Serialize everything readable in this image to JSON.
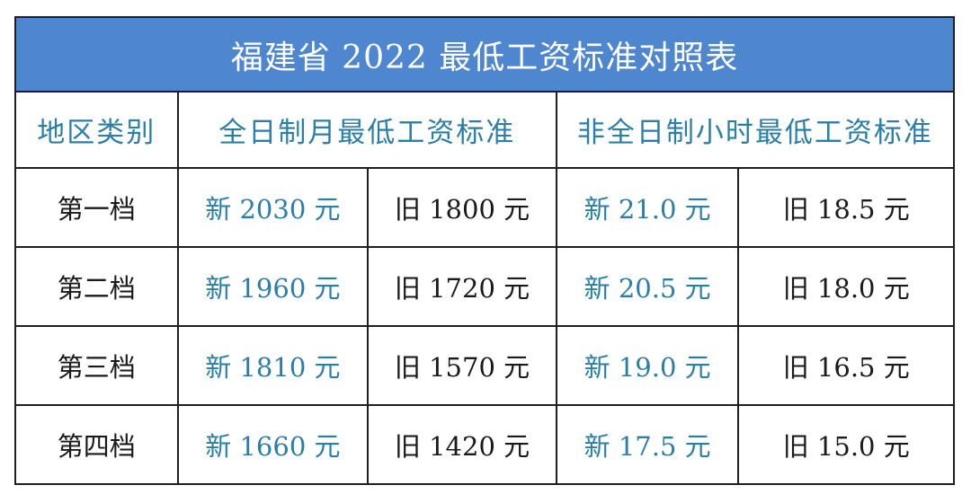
{
  "title": "福建省 2022 最低工资标准对照表",
  "colors": {
    "header_bg": "#4f86d0",
    "accent_text": "#2a7fa8"
  },
  "headers": {
    "region": "地区类别",
    "monthly": "全日制月最低工资标准",
    "hourly": "非全日制小时最低工资标准"
  },
  "rows": [
    {
      "tier": "第一档",
      "monthly_new": "新 2030 元",
      "monthly_old": "旧 1800 元",
      "hourly_new": "新 21.0 元",
      "hourly_old": "旧 18.5 元"
    },
    {
      "tier": "第二档",
      "monthly_new": "新 1960 元",
      "monthly_old": "旧 1720 元",
      "hourly_new": "新 20.5 元",
      "hourly_old": "旧 18.0 元"
    },
    {
      "tier": "第三档",
      "monthly_new": "新 1810 元",
      "monthly_old": "旧 1570 元",
      "hourly_new": "新 19.0 元",
      "hourly_old": "旧 16.5 元"
    },
    {
      "tier": "第四档",
      "monthly_new": "新 1660 元",
      "monthly_old": "旧 1420 元",
      "hourly_new": "新 17.5 元",
      "hourly_old": "旧 15.0 元"
    }
  ]
}
